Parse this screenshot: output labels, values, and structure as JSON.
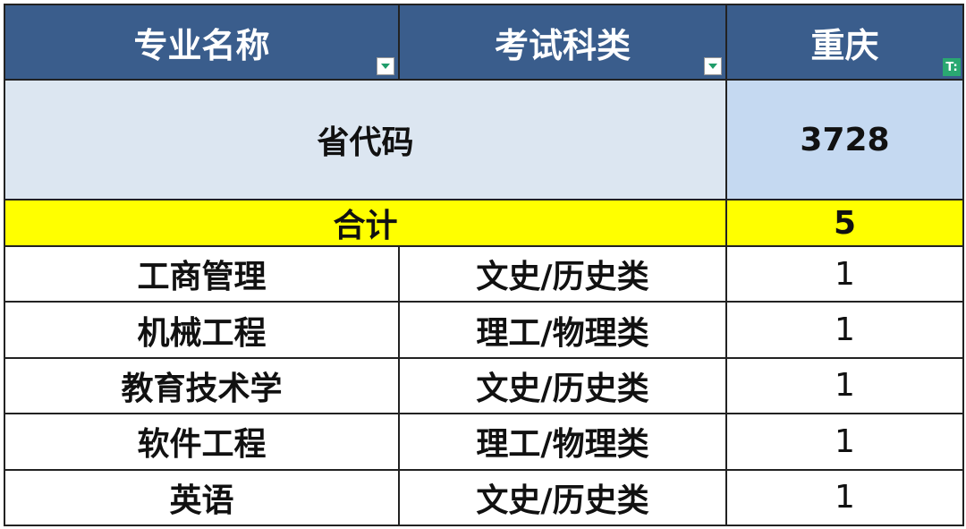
{
  "header": {
    "col1": "专业名称",
    "col2": "考试科类",
    "col3": "重庆",
    "filter_icons": [
      "dropdown-arrow-icon",
      "dropdown-arrow-icon",
      "filter-active-icon"
    ]
  },
  "code_row": {
    "label": "省代码",
    "value": "3728"
  },
  "total_row": {
    "label": "合计",
    "value": "5"
  },
  "rows": [
    {
      "major": "工商管理",
      "category": "文史/历史类",
      "count": "1"
    },
    {
      "major": "机械工程",
      "category": "理工/物理类",
      "count": "1"
    },
    {
      "major": "教育技术学",
      "category": "文史/历史类",
      "count": "1"
    },
    {
      "major": "软件工程",
      "category": "理工/物理类",
      "count": "1"
    },
    {
      "major": "英语",
      "category": "文史/历史类",
      "count": "1"
    }
  ],
  "colors": {
    "header_bg": "#3a5d8c",
    "code_left_bg": "#dce6f1",
    "code_right_bg": "#c5d9f1",
    "total_bg": "#ffff00"
  }
}
